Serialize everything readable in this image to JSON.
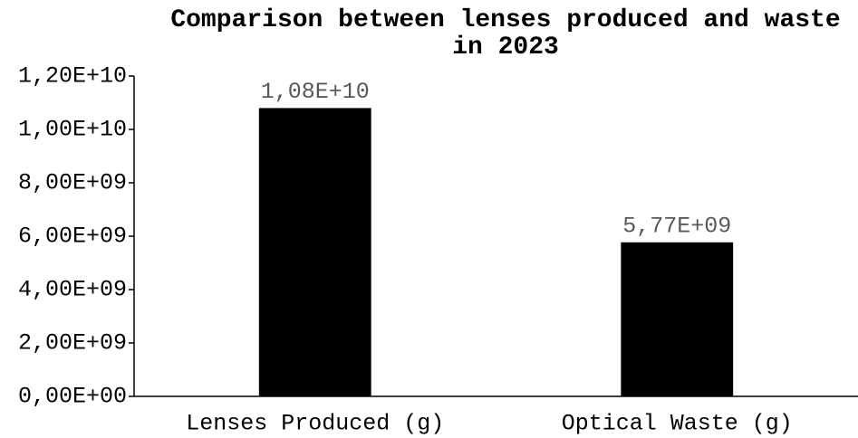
{
  "chart_data": {
    "type": "bar",
    "title": "Comparison between lenses produced and waste in 2023",
    "categories": [
      "Lenses Produced (g)",
      "Optical Waste (g)"
    ],
    "values": [
      10800000000,
      5770000000
    ],
    "value_labels": [
      "1,08E+10",
      "5,77E+09"
    ],
    "color": "#000000",
    "ylim": [
      0,
      12000000000
    ],
    "yticks": [
      {
        "value": 0,
        "label": "0,00E+00"
      },
      {
        "value": 2000000000,
        "label": "2,00E+09"
      },
      {
        "value": 4000000000,
        "label": "4,00E+09"
      },
      {
        "value": 6000000000,
        "label": "6,00E+09"
      },
      {
        "value": 8000000000,
        "label": "8,00E+09"
      },
      {
        "value": 10000000000,
        "label": "1,00E+10"
      },
      {
        "value": 12000000000,
        "label": "1,20E+10"
      }
    ],
    "grid": false
  }
}
